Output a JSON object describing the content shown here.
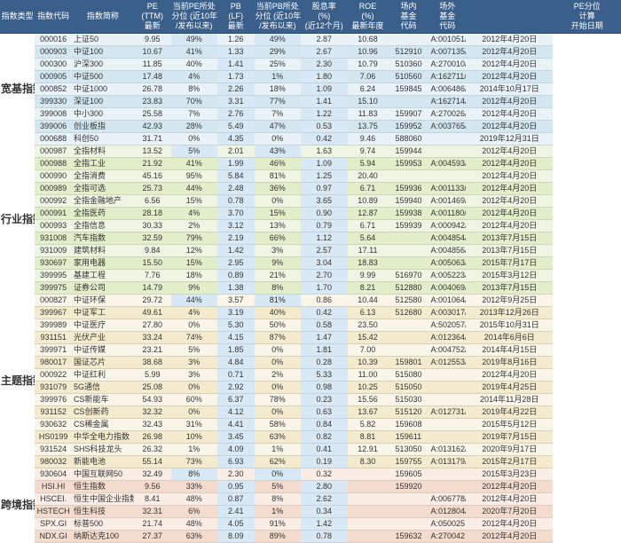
{
  "col_widths": [
    "36px",
    "38px",
    "64px",
    "38px",
    "48px",
    "38px",
    "48px",
    "48px",
    "42px",
    "42px",
    "38px",
    "90px",
    "70px"
  ],
  "highlight_cols": [
    4,
    6,
    12
  ],
  "colors": {
    "header_bg": "#3a5f8a",
    "header_fg": "#ffffff",
    "kj_group": "#9ec9d9",
    "hy_group": "#c4d89a",
    "zt_group": "#e8d5a8",
    "kj2_group": "#e8b8a0",
    "hl_col": "#d9e8f5"
  },
  "headers": [
    "指数类型",
    "指数代码",
    "指数简称",
    "PE\n(TTM)\n最新",
    "当前PE所处\n分位 (近10年\n/发布以来)",
    "PB\n(LF)\n最新",
    "当前PB所处\n分位 (近10年\n/发布以来)",
    "股息率\n(%)\n(近12个月)",
    "ROE\n(%)\n最新年度",
    "场内\n基金\n代码",
    "场外\n基金\n代码",
    "",
    "PE分位\n计算\n开始日期"
  ],
  "groups": [
    {
      "label": "宽基指数",
      "cls": "kj",
      "rows": [
        {
          "code": "000016",
          "name": "上证50",
          "pe": "9.95",
          "peq": "49%",
          "pb": "1.26",
          "pbq": "49%",
          "div": "2.87",
          "roe": "10.68",
          "in": "",
          "out": "A:001051/C:005733",
          "date": "2012年4月20日"
        },
        {
          "code": "000903",
          "name": "中证100",
          "pe": "10.67",
          "peq": "41%",
          "pb": "1.33",
          "pbq": "29%",
          "div": "2.67",
          "roe": "10.96",
          "in": "512910",
          "out": "A:007135/C:007136",
          "date": "2012年4月20日"
        },
        {
          "code": "000300",
          "name": "沪深300",
          "pe": "11.85",
          "peq": "40%",
          "pb": "1.41",
          "pbq": "25%",
          "div": "2.30",
          "roe": "10.79",
          "in": "510360",
          "out": "A:270010/C:002987",
          "date": "2012年4月20日"
        },
        {
          "code": "000905",
          "name": "中证500",
          "pe": "17.48",
          "peq": "4%",
          "pb": "1.73",
          "pbq": "1%",
          "div": "1.80",
          "roe": "7.06",
          "in": "510560",
          "out": "A:162711/C:002903",
          "date": "2012年4月20日"
        },
        {
          "code": "000852",
          "name": "中证1000",
          "pe": "26.78",
          "peq": "8%",
          "pb": "2.26",
          "pbq": "18%",
          "div": "1.09",
          "roe": "6.24",
          "in": "159845",
          "out": "A:006486/C:006486",
          "date": "2014年10月17日"
        },
        {
          "code": "399330",
          "name": "深证100",
          "pe": "23.83",
          "peq": "70%",
          "pb": "3.31",
          "pbq": "77%",
          "div": "1.41",
          "roe": "15.10",
          "in": "",
          "out": "A:162714/C:009472",
          "date": "2012年4月20日"
        },
        {
          "code": "399008",
          "name": "中小300",
          "pe": "25.58",
          "peq": "7%",
          "pb": "2.76",
          "pbq": "7%",
          "div": "1.22",
          "roe": "11.83",
          "in": "159907",
          "out": "A:270026/C:010432",
          "date": "2012年4月20日"
        },
        {
          "code": "399006",
          "name": "创业板指",
          "pe": "42.93",
          "peq": "28%",
          "pb": "5.49",
          "pbq": "47%",
          "div": "0.53",
          "roe": "13.75",
          "in": "159952",
          "out": "A:003765/C:003766",
          "date": "2012年4月20日"
        },
        {
          "code": "000688",
          "name": "科创50",
          "pe": "31.71",
          "peq": "0%",
          "pb": "4.35",
          "pbq": "0%",
          "div": "0.42",
          "roe": "9.46",
          "in": "588060",
          "out": "",
          "date": "2019年12月31日"
        }
      ]
    },
    {
      "label": "行业指数",
      "cls": "hy",
      "rows": [
        {
          "code": "000987",
          "name": "全指材料",
          "pe": "13.52",
          "peq": "5%",
          "pb": "2.01",
          "pbq": "43%",
          "div": "1.63",
          "roe": "9.74",
          "in": "159944",
          "out": "",
          "date": "2012年4月20日"
        },
        {
          "code": "000988",
          "name": "全指工业",
          "pe": "21.92",
          "peq": "41%",
          "pb": "1.99",
          "pbq": "46%",
          "div": "1.09",
          "roe": "5.94",
          "in": "159953",
          "out": "A:004593/C:005692",
          "date": "2012年4月20日"
        },
        {
          "code": "000990",
          "name": "全指消费",
          "pe": "45.16",
          "peq": "95%",
          "pb": "5.84",
          "pbq": "81%",
          "div": "1.25",
          "roe": "20.40",
          "in": "",
          "out": "",
          "date": "2012年4月20日"
        },
        {
          "code": "000989",
          "name": "全指可选",
          "pe": "25.73",
          "peq": "44%",
          "pb": "2.48",
          "pbq": "36%",
          "div": "0.97",
          "roe": "6.71",
          "in": "159936",
          "out": "A:001133/C:002977",
          "date": "2012年4月20日"
        },
        {
          "code": "000992",
          "name": "全指金融地产",
          "pe": "6.56",
          "peq": "15%",
          "pb": "0.78",
          "pbq": "0%",
          "div": "3.65",
          "roe": "10.89",
          "in": "159940",
          "out": "A:001469/C:002979",
          "date": "2012年4月20日"
        },
        {
          "code": "000991",
          "name": "全指医药",
          "pe": "28.18",
          "peq": "4%",
          "pb": "3.70",
          "pbq": "15%",
          "div": "0.90",
          "roe": "12.87",
          "in": "159938",
          "out": "A:001180/C:002978",
          "date": "2012年4月20日"
        },
        {
          "code": "000993",
          "name": "全指信息",
          "pe": "30.33",
          "peq": "2%",
          "pb": "3.12",
          "pbq": "13%",
          "div": "0.79",
          "roe": "6.71",
          "in": "159939",
          "out": "A:000942/C:002974",
          "date": "2012年4月20日"
        },
        {
          "code": "931008",
          "name": "汽车指数",
          "pe": "32.59",
          "peq": "79%",
          "pb": "2.19",
          "pbq": "66%",
          "div": "1.12",
          "roe": "5.64",
          "in": "",
          "out": "A:004854/C:004855",
          "date": "2013年7月15日"
        },
        {
          "code": "931009",
          "name": "建筑材料",
          "pe": "9.84",
          "peq": "12%",
          "pb": "1.42",
          "pbq": "3%",
          "div": "2.57",
          "roe": "17.11",
          "in": "",
          "out": "A:004856/C:004857",
          "date": "2013年7月15日"
        },
        {
          "code": "930697",
          "name": "家用电器",
          "pe": "15.50",
          "peq": "15%",
          "pb": "2.95",
          "pbq": "9%",
          "div": "3.04",
          "roe": "18.83",
          "in": "",
          "out": "A:005063/C:005064",
          "date": "2015年7月17日"
        },
        {
          "code": "399995",
          "name": "基建工程",
          "pe": "7.76",
          "peq": "18%",
          "pb": "0.89",
          "pbq": "21%",
          "div": "2.70",
          "roe": "9.99",
          "in": "516970",
          "out": "A:005223/C:005224",
          "date": "2015年3月12日"
        },
        {
          "code": "399975",
          "name": "证券公司",
          "pe": "14.79",
          "peq": "9%",
          "pb": "1.38",
          "pbq": "8%",
          "div": "1.70",
          "roe": "8.21",
          "in": "512880",
          "out": "A:004069/C:004070",
          "date": "2013年7月15日"
        }
      ]
    },
    {
      "label": "主题指数",
      "cls": "zt",
      "rows": [
        {
          "code": "000827",
          "name": "中证环保",
          "pe": "29.72",
          "peq": "44%",
          "pb": "3.57",
          "pbq": "81%",
          "div": "0.86",
          "roe": "10.44",
          "in": "512580",
          "out": "A:001064/C:002984",
          "date": "2012年9月25日"
        },
        {
          "code": "399967",
          "name": "中证军工",
          "pe": "49.61",
          "peq": "4%",
          "pb": "3.19",
          "pbq": "40%",
          "div": "0.42",
          "roe": "6.13",
          "in": "512680",
          "out": "A:003017/C:005693",
          "date": "2013年12月26日"
        },
        {
          "code": "399989",
          "name": "中证医疗",
          "pe": "27.80",
          "peq": "0%",
          "pb": "5.30",
          "pbq": "50%",
          "div": "0.58",
          "roe": "23.50",
          "in": "",
          "out": "A:502057/C:012730",
          "date": "2015年10月31日"
        },
        {
          "code": "931151",
          "name": "光伏产业",
          "pe": "33.24",
          "peq": "74%",
          "pb": "4.15",
          "pbq": "87%",
          "div": "1.47",
          "roe": "15.42",
          "in": "",
          "out": "A:012364/C:012365",
          "date": "2014年6月6日"
        },
        {
          "code": "399971",
          "name": "中证传媒",
          "pe": "23.21",
          "peq": "5%",
          "pb": "1.85",
          "pbq": "0%",
          "div": "1.81",
          "roe": "7.00",
          "in": "",
          "out": "A:004752/C:004753",
          "date": "2014年4月15日"
        },
        {
          "code": "980017",
          "name": "国证芯片",
          "pe": "38.68",
          "peq": "3%",
          "pb": "4.84",
          "pbq": "0%",
          "div": "0.28",
          "roe": "10.39",
          "in": "159801",
          "out": "A:012553/C:012630",
          "date": "2019年8月16日"
        },
        {
          "code": "000922",
          "name": "中证红利",
          "pe": "5.99",
          "peq": "3%",
          "pb": "0.71",
          "pbq": "2%",
          "div": "5.33",
          "roe": "11.00",
          "in": "515080",
          "out": "",
          "date": "2012年4月20日"
        },
        {
          "code": "931079",
          "name": "5G通信",
          "pe": "25.08",
          "peq": "0%",
          "pb": "2.92",
          "pbq": "0%",
          "div": "0.98",
          "roe": "10.25",
          "in": "515050",
          "out": "",
          "date": "2019年4月25日"
        },
        {
          "code": "399976",
          "name": "CS新能车",
          "pe": "54.93",
          "peq": "60%",
          "pb": "6.37",
          "pbq": "78%",
          "div": "0.23",
          "roe": "15.56",
          "in": "515030",
          "out": "",
          "date": "2014年11月28日"
        },
        {
          "code": "931152",
          "name": "CS创新药",
          "pe": "32.32",
          "peq": "0%",
          "pb": "4.12",
          "pbq": "0%",
          "div": "0.63",
          "roe": "13.67",
          "in": "515120",
          "out": "A:012731/C:012738",
          "date": "2019年4月22日"
        },
        {
          "code": "930632",
          "name": "CS稀金属",
          "pe": "32.43",
          "peq": "31%",
          "pb": "4.41",
          "pbq": "58%",
          "div": "0.84",
          "roe": "5.82",
          "in": "159608",
          "out": "",
          "date": "2015年5月12日"
        },
        {
          "code": "HS0199",
          "name": "中华全电力指数",
          "pe": "26.98",
          "peq": "10%",
          "pb": "3.45",
          "pbq": "63%",
          "div": "0.82",
          "roe": "8.81",
          "in": "159611",
          "out": "",
          "date": "2019年7月15日"
        },
        {
          "code": "931524",
          "name": "SHS科技龙头",
          "pe": "26.32",
          "peq": "1%",
          "pb": "4.09",
          "pbq": "1%",
          "div": "0.41",
          "roe": "12.91",
          "in": "513050",
          "out": "A:013162/C:013163",
          "date": "2020年9月17日"
        },
        {
          "code": "980032",
          "name": "新能电池",
          "pe": "55.14",
          "peq": "73%",
          "pb": "6.93",
          "pbq": "62%",
          "div": "0.19",
          "roe": "8.30",
          "in": "159755",
          "out": "A:013179/C:013180",
          "date": "2015年2月17日"
        }
      ]
    },
    {
      "label": "跨境指数",
      "cls": "kj2",
      "rows": [
        {
          "code": "930604",
          "name": "中国互联网50",
          "pe": "32.49",
          "peq": "8%",
          "pb": "2.30",
          "pbq": "0%",
          "div": "0.32",
          "roe": "",
          "in": "159605",
          "out": "",
          "date": "2015年3月23日"
        },
        {
          "code": "HSI.HI",
          "name": "恒生指数",
          "pe": "9.56",
          "peq": "33%",
          "pb": "0.95",
          "pbq": "5%",
          "div": "2.80",
          "roe": "",
          "in": "159920",
          "out": "",
          "date": "2012年4月20日"
        },
        {
          "code": "HSCEI.",
          "name": "恒生中国企业指数",
          "pe": "8.41",
          "peq": "48%",
          "pb": "0.87",
          "pbq": "8%",
          "div": "2.62",
          "roe": "",
          "in": "",
          "out": "A:006778/C:006779",
          "date": "2012年4月20日"
        },
        {
          "code": "HSTECH",
          "name": "恒生科技",
          "pe": "32.31",
          "peq": "6%",
          "pb": "2.41",
          "pbq": "1%",
          "div": "0.34",
          "roe": "",
          "in": "",
          "out": "A:012804/C:012805",
          "date": "2020年7月20日"
        },
        {
          "code": "SPX.GI",
          "name": "标普500",
          "pe": "21.74",
          "peq": "48%",
          "pb": "4.05",
          "pbq": "91%",
          "div": "1.42",
          "roe": "",
          "in": "",
          "out": "A:050025",
          "date": "2012年4月20日"
        },
        {
          "code": "NDX.GI",
          "name": "纳斯达克100",
          "pe": "27.37",
          "peq": "63%",
          "pb": "8.09",
          "pbq": "89%",
          "div": "0.78",
          "roe": "",
          "in": "159632",
          "out": "A:270042",
          "date": "2012年4月20日"
        }
      ]
    }
  ]
}
